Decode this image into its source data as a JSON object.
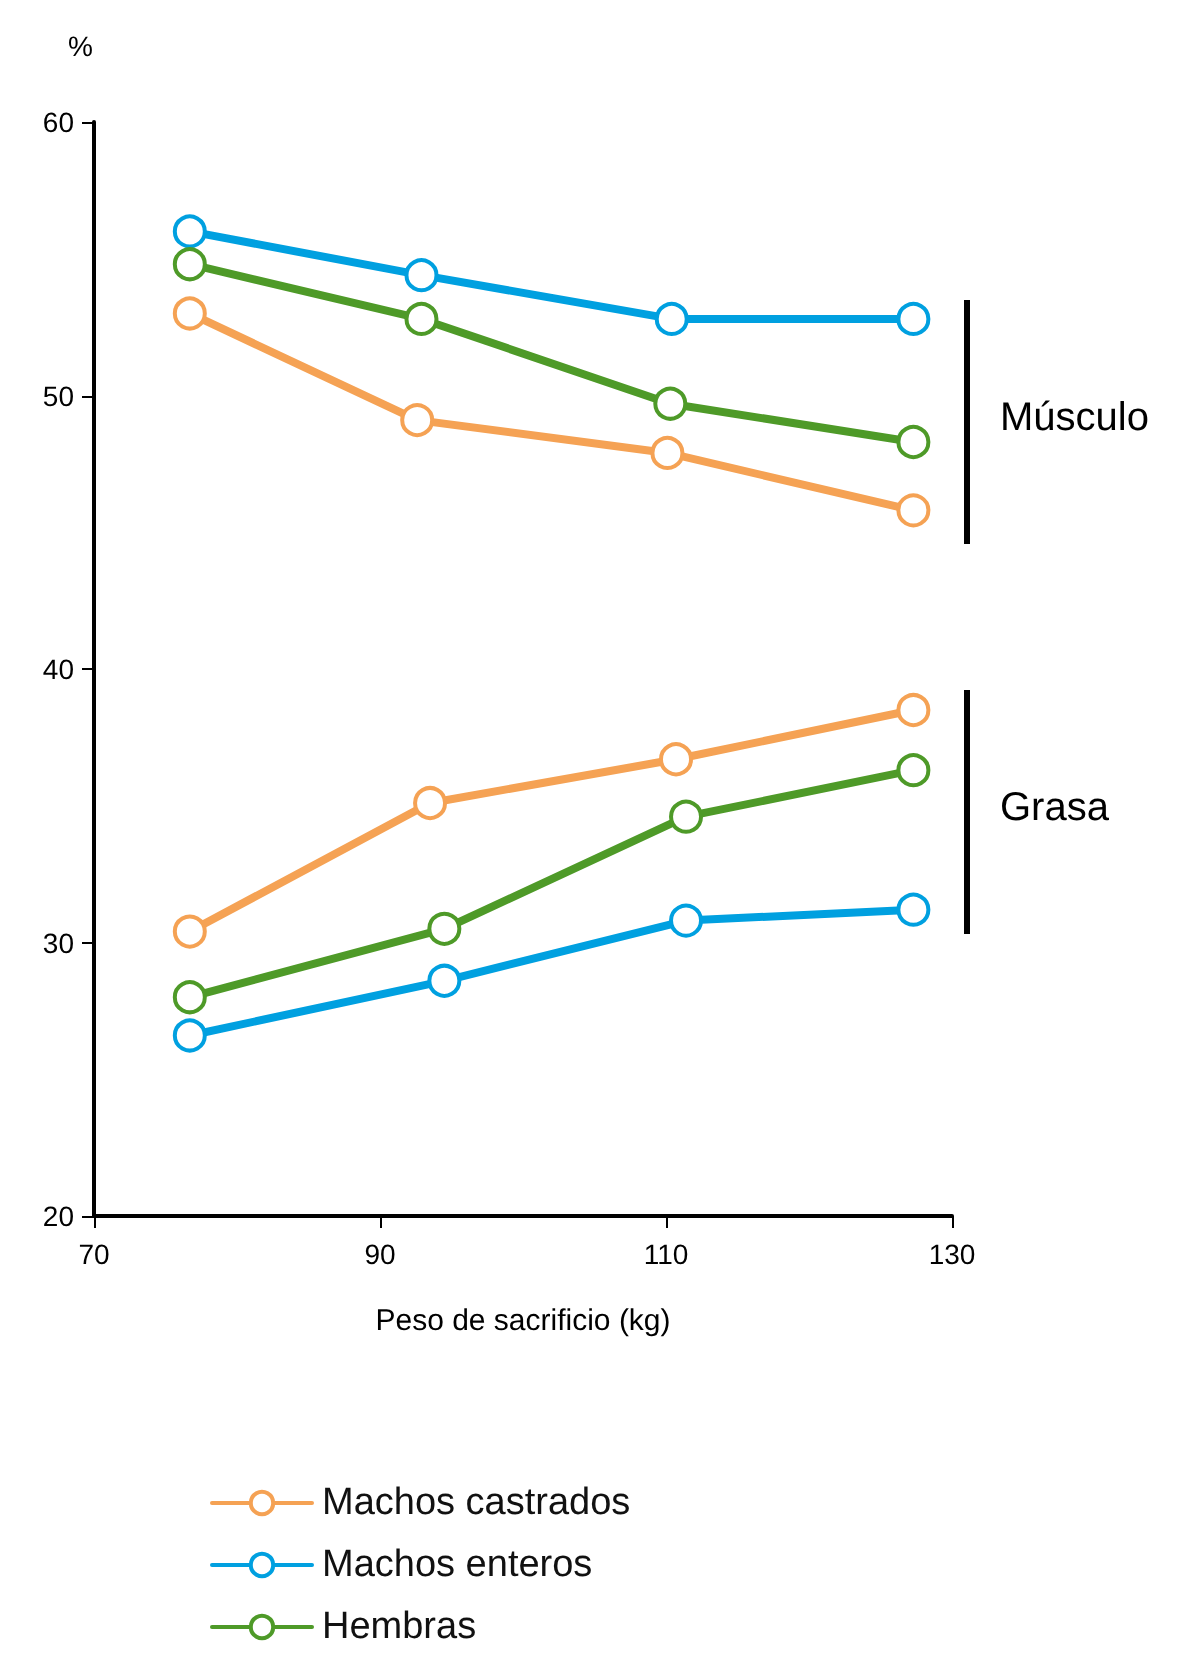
{
  "chart_data": {
    "type": "line",
    "xlabel": "Peso de sacrificio (kg)",
    "ylabel": "%",
    "xlim": [
      70,
      130
    ],
    "xticks": [
      70,
      90,
      110,
      130
    ],
    "ylim": [
      20,
      60
    ],
    "yticks": [
      20,
      30,
      40,
      50,
      60
    ],
    "grid": false,
    "legend": "bottom",
    "marker": "circle",
    "line_style": "solid",
    "annotations": [
      "Músculo",
      "Grasa"
    ],
    "series": [
      {
        "name": "Machos castrados",
        "color": "#f5a254",
        "x": [
          76.7,
          92.6,
          110.1,
          127.3
        ],
        "values": [
          53,
          49.1,
          47.9,
          45.8
        ]
      },
      {
        "name": "Machos enteros",
        "color": "#00a0e0",
        "x": [
          76.7,
          92.9,
          110.4,
          127.3
        ],
        "values": [
          56,
          54.4,
          52.8,
          52.8
        ]
      },
      {
        "name": "Hembras",
        "color": "#4e9a28",
        "x": [
          76.7,
          92.9,
          110.3,
          127.3
        ],
        "values": [
          54.8,
          52.8,
          49.7,
          48.3
        ]
      },
      {
        "color": "#f5a254",
        "x": [
          76.7,
          93.5,
          110.7,
          127.3
        ],
        "values": [
          30.4,
          35.1,
          36.7,
          38.5
        ]
      },
      {
        "color": "#00a0e0",
        "x": [
          76.7,
          94.5,
          111.4,
          127.3
        ],
        "values": [
          26.6,
          28.6,
          30.8,
          31.2
        ]
      },
      {
        "color": "#4e9a28",
        "x": [
          76.7,
          94.5,
          111.4,
          127.3
        ],
        "values": [
          28,
          30.5,
          34.6,
          36.3
        ]
      }
    ]
  }
}
